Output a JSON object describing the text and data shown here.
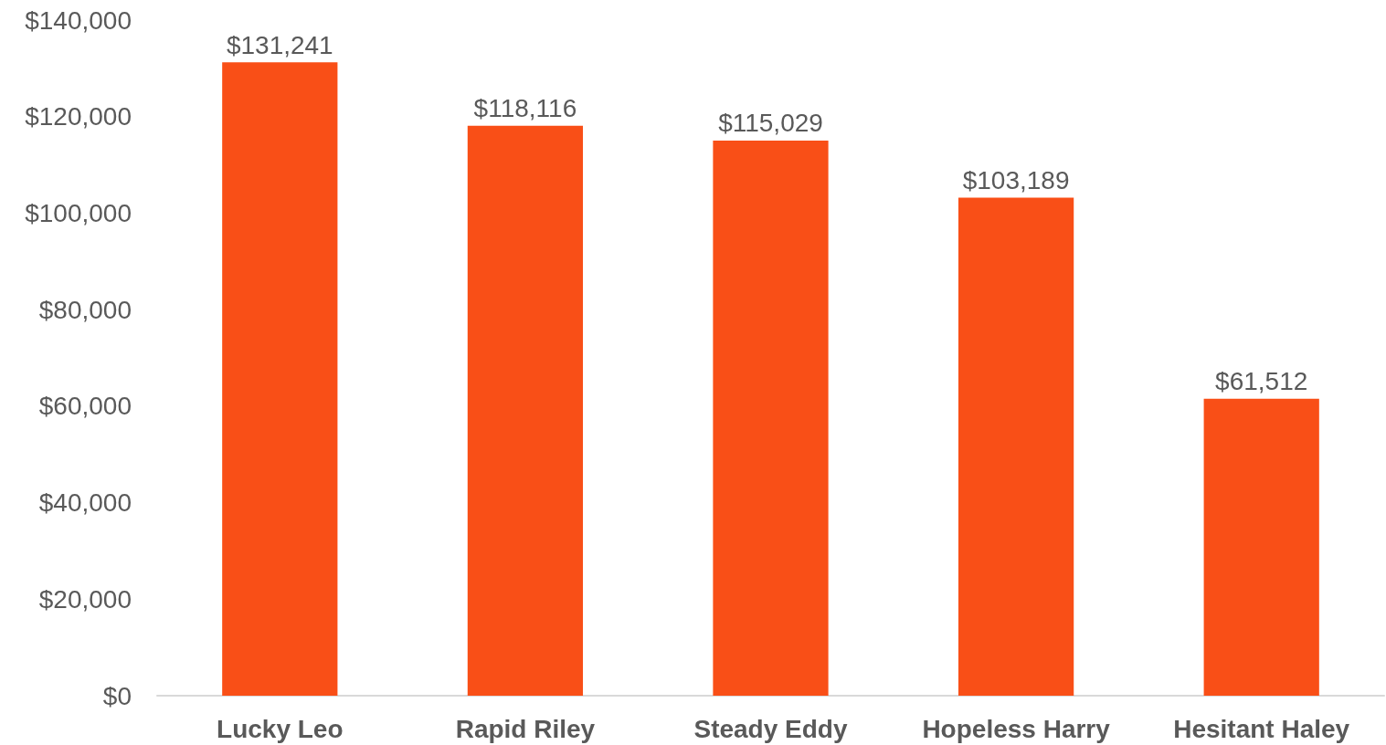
{
  "chart_data": {
    "type": "bar",
    "categories": [
      "Lucky Leo",
      "Rapid Riley",
      "Steady Eddy",
      "Hopeless Harry",
      "Hesitant Haley"
    ],
    "values": [
      131241,
      118116,
      115029,
      103189,
      61512
    ],
    "value_labels": [
      "$131,241",
      "$118,116",
      "$115,029",
      "$103,189",
      "$61,512"
    ],
    "color": "#f94f17",
    "ylim": [
      0,
      140000
    ],
    "yticks": [
      {
        "value": 0,
        "label": "$0"
      },
      {
        "value": 20000,
        "label": "$20,000"
      },
      {
        "value": 40000,
        "label": "$40,000"
      },
      {
        "value": 60000,
        "label": "$60,000"
      },
      {
        "value": 80000,
        "label": "$80,000"
      },
      {
        "value": 100000,
        "label": "$100,000"
      },
      {
        "value": 120000,
        "label": "$120,000"
      },
      {
        "value": 140000,
        "label": "$140,000"
      }
    ],
    "grid": false
  }
}
